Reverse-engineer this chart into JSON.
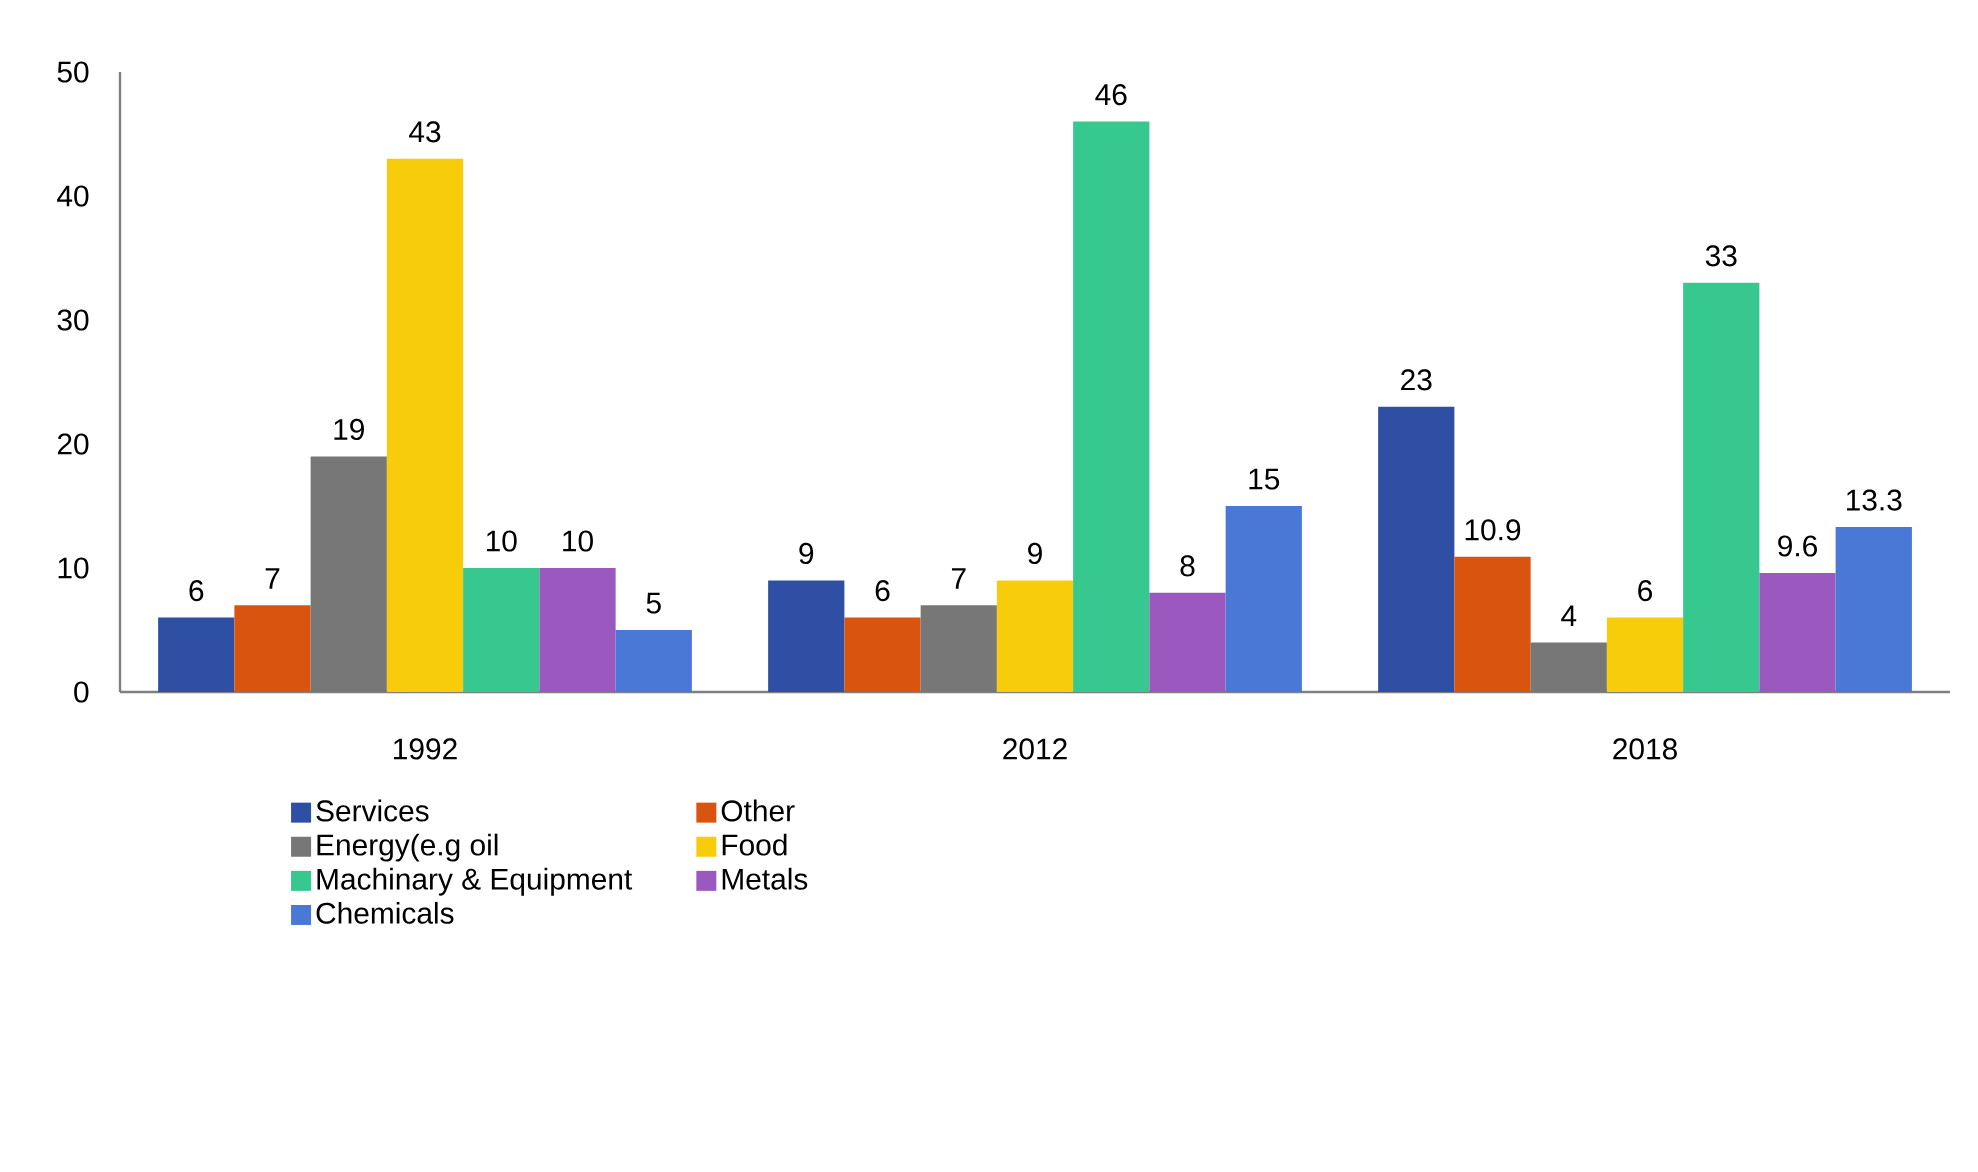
{
  "chart_data": {
    "type": "bar",
    "categories": [
      "1992",
      "2012",
      "2018"
    ],
    "series": [
      {
        "name": "Services",
        "color": "#2e4fa3",
        "values": [
          6,
          9,
          23
        ]
      },
      {
        "name": "Other",
        "color": "#d9540f",
        "values": [
          7,
          6,
          10.9
        ]
      },
      {
        "name": "Energy(e.g oil",
        "color": "#777777",
        "values": [
          19,
          7,
          4
        ]
      },
      {
        "name": "Food",
        "color": "#f7cc0a",
        "values": [
          43,
          9,
          6
        ]
      },
      {
        "name": "Machinary & Equipment",
        "color": "#36c88e",
        "values": [
          10,
          46,
          33
        ]
      },
      {
        "name": "Metals",
        "color": "#9b59c0",
        "values": [
          10,
          8,
          9.6
        ]
      },
      {
        "name": "Chemicals",
        "color": "#4a78d6",
        "values": [
          5,
          15,
          13.3
        ]
      }
    ],
    "ylim": [
      0,
      50
    ],
    "yticks": [
      0,
      10,
      20,
      30,
      40,
      50
    ],
    "grid": false,
    "legend": "bottom",
    "data_labels": true
  }
}
